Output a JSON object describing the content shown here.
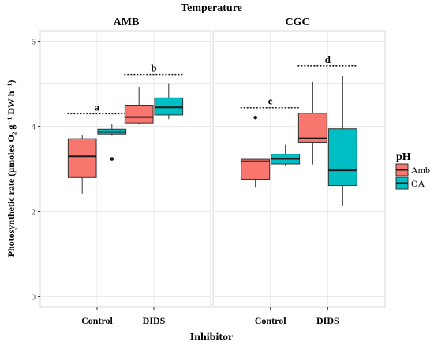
{
  "chart_data": {
    "type": "boxplot",
    "title": "Temperature",
    "xlabel": "Inhibitor",
    "ylabel": "Photosynthetic rate (µmoles O₂ g⁻¹ DW h⁻¹)",
    "ylim": [
      -0.25,
      6.25
    ],
    "yticks": [
      0,
      2,
      4,
      6
    ],
    "grid": true,
    "legend": {
      "title": "pH",
      "position": "right",
      "entries": [
        {
          "label": "Amb",
          "color": "#f8766d"
        },
        {
          "label": "OA",
          "color": "#00bfc4"
        }
      ]
    },
    "categories": [
      "Control",
      "DIDS"
    ],
    "panels": [
      {
        "label": "AMB",
        "groups": [
          {
            "category": "Control",
            "letter": "a",
            "letter_y": 4.3,
            "boxes": [
              {
                "series": "Amb",
                "min": 2.42,
                "q1": 2.8,
                "median": 3.3,
                "q3": 3.71,
                "max": 3.8,
                "outliers": []
              },
              {
                "series": "OA",
                "min": 3.78,
                "q1": 3.82,
                "median": 3.87,
                "q3": 3.93,
                "max": 4.05,
                "outliers": [
                  3.24
                ]
              }
            ]
          },
          {
            "category": "DIDS",
            "letter": "b",
            "letter_y": 5.22,
            "boxes": [
              {
                "series": "Amb",
                "min": 4.04,
                "q1": 4.08,
                "median": 4.22,
                "q3": 4.5,
                "max": 4.93,
                "outliers": []
              },
              {
                "series": "OA",
                "min": 4.17,
                "q1": 4.27,
                "median": 4.45,
                "q3": 4.67,
                "max": 5.0,
                "outliers": []
              }
            ]
          }
        ]
      },
      {
        "label": "CGC",
        "groups": [
          {
            "category": "Control",
            "letter": "c",
            "letter_y": 4.44,
            "boxes": [
              {
                "series": "Amb",
                "min": 2.56,
                "q1": 2.76,
                "median": 3.18,
                "q3": 3.23,
                "max": 3.23,
                "outliers": [
                  4.21
                ]
              },
              {
                "series": "OA",
                "min": 3.07,
                "q1": 3.12,
                "median": 3.24,
                "q3": 3.35,
                "max": 3.57,
                "outliers": []
              }
            ]
          },
          {
            "category": "DIDS",
            "letter": "d",
            "letter_y": 5.42,
            "boxes": [
              {
                "series": "Amb",
                "min": 3.11,
                "q1": 3.63,
                "median": 3.72,
                "q3": 4.31,
                "max": 5.05,
                "outliers": []
              },
              {
                "series": "OA",
                "min": 2.14,
                "q1": 2.61,
                "median": 2.97,
                "q3": 3.94,
                "max": 5.18,
                "outliers": []
              }
            ]
          }
        ]
      }
    ]
  }
}
